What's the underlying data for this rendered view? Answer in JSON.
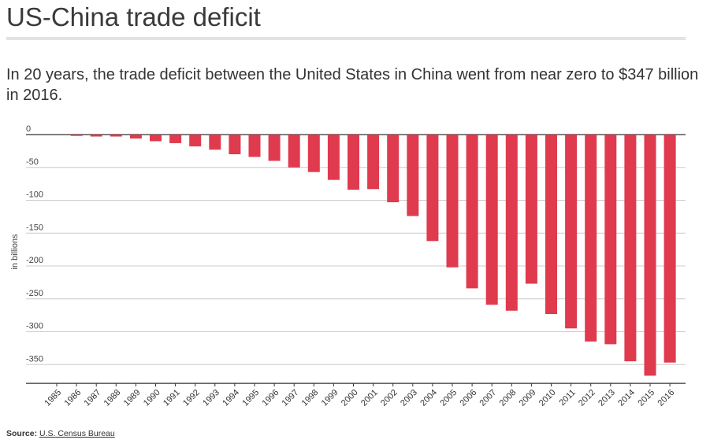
{
  "title": "US-China trade deficit",
  "subtitle": "In 20 years, the trade deficit between the United States in China went from near zero to $347 billion in 2016.",
  "source": {
    "label": "Source:",
    "link_text": "U.S. Census Bureau"
  },
  "colors": {
    "bar": "#e03a4e",
    "grid": "#cccccc",
    "zero_line": "#333333"
  },
  "chart_data": {
    "type": "bar",
    "title": "",
    "xlabel": "",
    "ylabel": "in billions",
    "ylim": [
      -375,
      0
    ],
    "yticks": [
      0,
      -50,
      -100,
      -150,
      -200,
      -250,
      -300,
      -350
    ],
    "grid": true,
    "categories": [
      "1985",
      "1986",
      "1987",
      "1988",
      "1989",
      "1990",
      "1991",
      "1992",
      "1993",
      "1994",
      "1995",
      "1996",
      "1997",
      "1998",
      "1999",
      "2000",
      "2001",
      "2002",
      "2003",
      "2004",
      "2005",
      "2006",
      "2007",
      "2008",
      "2009",
      "2010",
      "2011",
      "2012",
      "2013",
      "2014",
      "2015",
      "2016"
    ],
    "values": [
      0,
      -2,
      -3,
      -3,
      -6,
      -10,
      -13,
      -18,
      -23,
      -30,
      -34,
      -40,
      -50,
      -57,
      -69,
      -84,
      -83,
      -103,
      -124,
      -162,
      -202,
      -234,
      -259,
      -268,
      -227,
      -273,
      -295,
      -315,
      -319,
      -345,
      -367,
      -347
    ]
  }
}
